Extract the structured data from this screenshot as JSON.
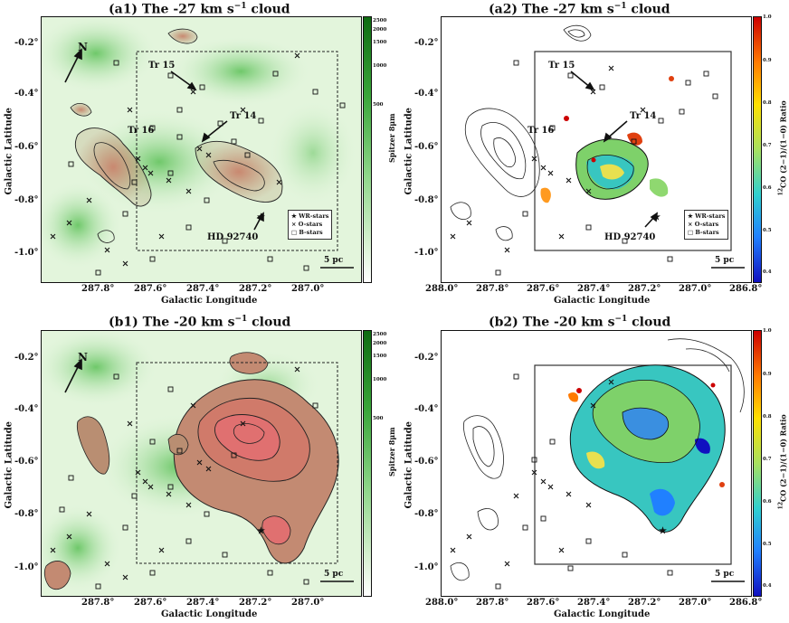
{
  "panels": {
    "a1": {
      "title_main": "(a1) The -27 km s",
      "title_sup": "−1",
      "title_tail": " cloud"
    },
    "a2": {
      "title_main": "(a2) The -27 km s",
      "title_sup": "−1",
      "title_tail": " cloud"
    },
    "b1": {
      "title_main": "(b1) The -20 km s",
      "title_sup": "−1",
      "title_tail": " cloud"
    },
    "b2": {
      "title_main": "(b2) The -20 km s",
      "title_sup": "−1",
      "title_tail": " cloud"
    }
  },
  "axes": {
    "xlabel": "Galactic Longitude",
    "ylabel": "Galactic Latitude",
    "x_ticks_left": [
      "287.8°",
      "287.6°",
      "287.4°",
      "287.2°",
      "287.0°"
    ],
    "x_ticks_right": [
      "288.0°",
      "287.8°",
      "287.6°",
      "287.4°",
      "287.2°",
      "287.0°",
      "286.8°"
    ],
    "y_ticks": [
      "-0.2°",
      "-0.4°",
      "-0.6°",
      "-0.8°",
      "-1.0°"
    ]
  },
  "colorbars": {
    "spitzer_label": "Spitzer 8μm",
    "spitzer_ticks": [
      "2500",
      "2000",
      "1500",
      "1000",
      "500"
    ],
    "ratio_label": "CO (2−1)/(1−0) Ratio",
    "ratio_sup": "12",
    "ratio_ticks": [
      "1.0",
      "0.9",
      "0.8",
      "0.7",
      "0.6",
      "0.5",
      "0.4"
    ],
    "spitzer_colors": [
      "#0f6b12",
      "#3aa63a",
      "#8fd68a",
      "#d6f0d0",
      "#ffffff"
    ],
    "ratio_colors": [
      "#cc0000",
      "#ff7a00",
      "#ffe000",
      "#a8e060",
      "#30d0d0",
      "#2080ff",
      "#1010c0"
    ]
  },
  "annotations": {
    "tr15": "Tr 15",
    "tr14": "Tr 14",
    "tr16": "Tr 16",
    "hd": "HD 92740",
    "north": "N",
    "scale": "5 pc"
  },
  "legend": {
    "wr": "WR-stars",
    "o": "O-stars",
    "b": "B-stars"
  }
}
